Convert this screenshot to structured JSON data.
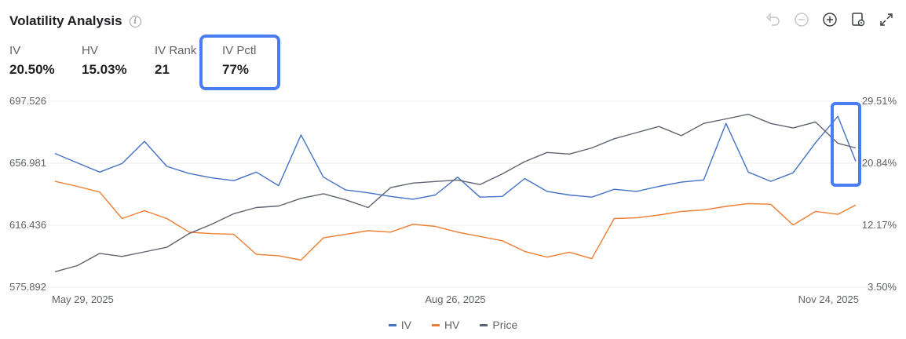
{
  "header": {
    "title": "Volatility Analysis",
    "info_icon": "info-icon"
  },
  "toolbar": {
    "icons": [
      "undo-icon",
      "zoom-out-icon",
      "zoom-in-icon",
      "settings-icon",
      "expand-icon"
    ]
  },
  "stats": [
    {
      "label": "IV",
      "value": "20.50%"
    },
    {
      "label": "HV",
      "value": "15.03%"
    },
    {
      "label": "IV Rank",
      "value": "21"
    },
    {
      "label": "IV Pctl",
      "value": "77%"
    }
  ],
  "colors": {
    "iv": "#4472c4",
    "hv": "#ed7d31",
    "price": "#5f6372",
    "highlight": "#4a7cf4"
  },
  "chart_data": {
    "type": "line",
    "x": [
      "2025-05-29",
      "2025-06-03",
      "2025-06-08",
      "2025-06-13",
      "2025-06-18",
      "2025-06-23",
      "2025-06-28",
      "2025-07-03",
      "2025-07-08",
      "2025-07-13",
      "2025-07-18",
      "2025-07-23",
      "2025-07-28",
      "2025-08-02",
      "2025-08-07",
      "2025-08-12",
      "2025-08-17",
      "2025-08-22",
      "2025-08-27",
      "2025-09-01",
      "2025-09-06",
      "2025-09-11",
      "2025-09-16",
      "2025-09-21",
      "2025-09-26",
      "2025-10-01",
      "2025-10-06",
      "2025-10-11",
      "2025-10-16",
      "2025-10-21",
      "2025-10-26",
      "2025-10-31",
      "2025-11-05",
      "2025-11-10",
      "2025-11-15",
      "2025-11-20",
      "2025-11-24"
    ],
    "x_ticks": [
      "May 29, 2025",
      "Aug 26, 2025",
      "Nov 24, 2025"
    ],
    "y_left_ticks": [
      "697.526",
      "656.981",
      "616.436",
      "575.892"
    ],
    "y_left_range": [
      575.892,
      697.526
    ],
    "y_right_ticks": [
      "29.51%",
      "20.84%",
      "12.17%",
      "3.50%"
    ],
    "y_right_range": [
      3.5,
      29.51
    ],
    "series": [
      {
        "name": "IV",
        "axis": "right",
        "color": "#4472c4",
        "values": [
          22.2,
          20.9,
          19.6,
          20.8,
          23.9,
          20.4,
          19.4,
          18.8,
          18.4,
          19.6,
          17.7,
          24.8,
          18.9,
          17.1,
          16.7,
          16.2,
          15.8,
          16.4,
          18.9,
          16.1,
          16.2,
          18.7,
          16.9,
          16.4,
          16.1,
          17.2,
          16.9,
          17.6,
          18.2,
          18.5,
          26.4,
          19.6,
          18.3,
          19.5,
          23.7,
          27.4,
          21.1
        ]
      },
      {
        "name": "HV",
        "axis": "right",
        "color": "#ed7d31",
        "values": [
          18.3,
          17.6,
          16.8,
          13.1,
          14.2,
          13.1,
          11.2,
          11.0,
          10.9,
          8.1,
          7.9,
          7.3,
          10.4,
          10.9,
          11.4,
          11.2,
          12.3,
          12.0,
          11.2,
          10.6,
          10.0,
          8.5,
          7.7,
          8.4,
          7.5,
          13.1,
          13.2,
          13.6,
          14.1,
          14.3,
          14.8,
          15.2,
          15.1,
          12.2,
          14.1,
          13.7,
          15.0
        ]
      },
      {
        "name": "Price",
        "axis": "left",
        "color": "#5f6372",
        "values": [
          586.0,
          590.0,
          598.0,
          596.0,
          599.0,
          602.0,
          611.0,
          617.0,
          624.0,
          628.0,
          629.0,
          634.0,
          637.0,
          633.0,
          628.0,
          641.0,
          644.0,
          645.0,
          646.0,
          643.0,
          650.0,
          658.0,
          664.0,
          663.0,
          667.0,
          673.0,
          677.0,
          681.0,
          675.0,
          683.0,
          686.0,
          689.0,
          683.0,
          680.0,
          684.0,
          670.0,
          667.0
        ]
      }
    ],
    "legend": [
      "IV",
      "HV",
      "Price"
    ],
    "legend_position": "bottom-center",
    "grid": true
  }
}
